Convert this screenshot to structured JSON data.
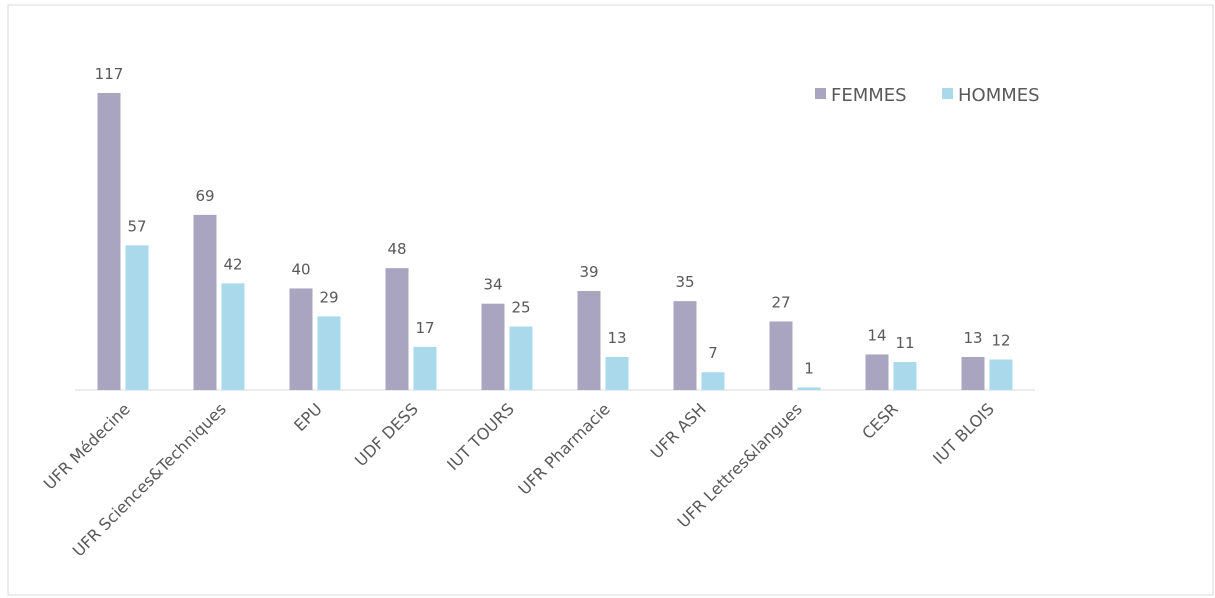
{
  "chart_data": {
    "type": "bar",
    "categories": [
      "UFR Médecine",
      "UFR Sciences&Techniques",
      "EPU",
      "UDF DESS",
      "IUT TOURS",
      "UFR Pharmacie",
      "UFR ASH",
      "UFR Lettres&langues",
      "CESR",
      "IUT BLOIS"
    ],
    "series": [
      {
        "name": "FEMMES",
        "color": "#a9a4bf",
        "values": [
          117,
          69,
          40,
          48,
          34,
          39,
          35,
          27,
          14,
          13
        ]
      },
      {
        "name": "HOMMES",
        "color": "#a9d9ea",
        "values": [
          57,
          42,
          29,
          17,
          25,
          13,
          7,
          1,
          11,
          12
        ]
      }
    ],
    "legend": "top-right"
  }
}
